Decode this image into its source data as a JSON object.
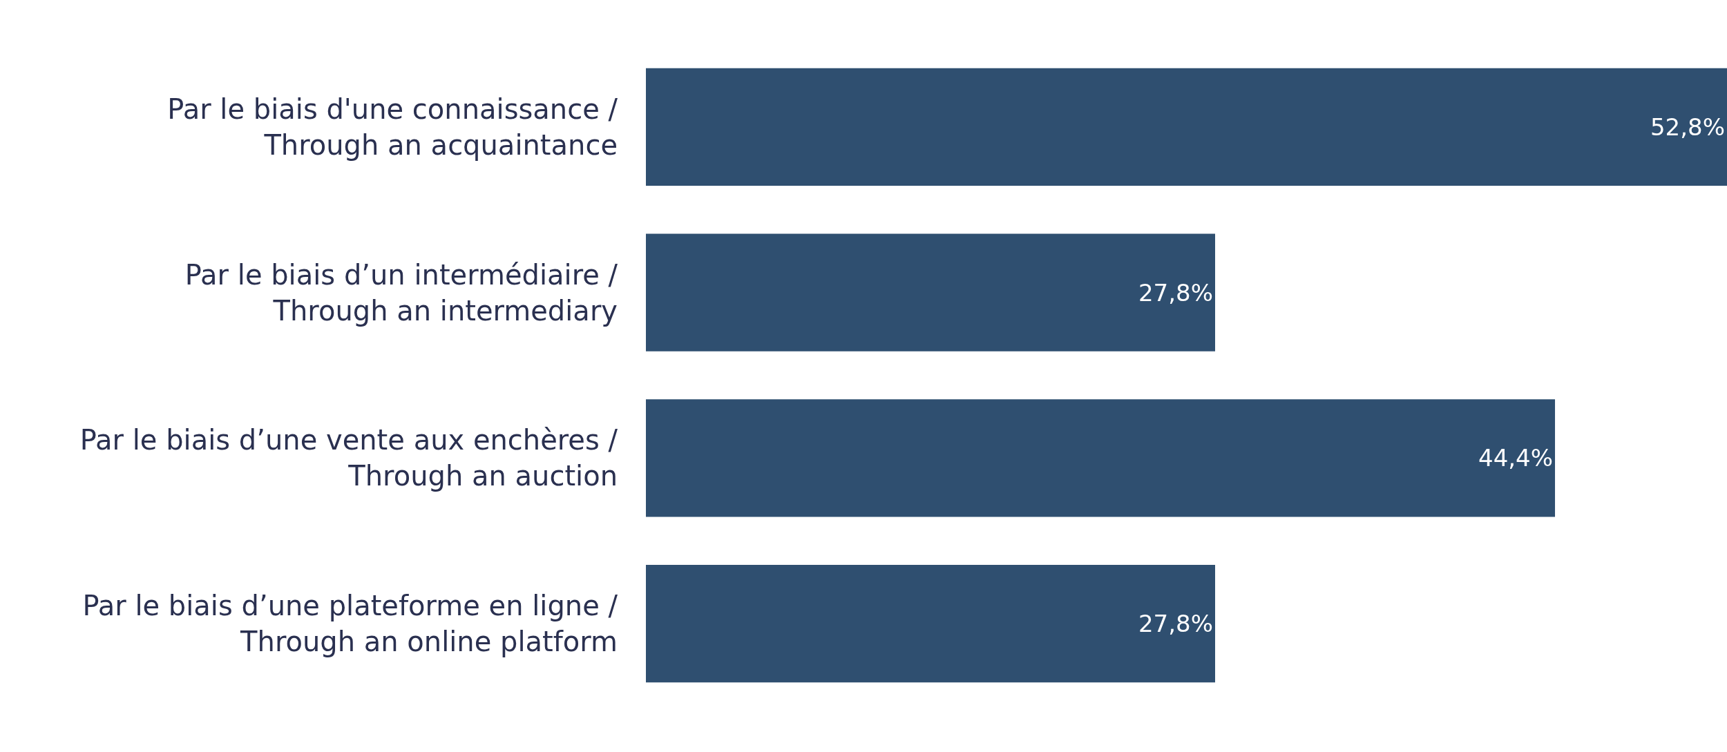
{
  "chart_data": {
    "type": "bar",
    "orientation": "horizontal",
    "categories": [
      "Par le biais d'une connaissance /\nThrough an acquaintance",
      "Par le biais d’un intermédiaire /\nThrough an intermediary",
      "Par le biais d’une vente aux enchères /\nThrough an auction",
      "Par le biais d’une plateforme en ligne /\nThrough an online platform"
    ],
    "values": [
      52.8,
      27.8,
      44.4,
      27.8
    ],
    "value_labels": [
      "52,8%",
      "27,8%",
      "44,4%",
      "27,8%"
    ],
    "color": "#2f4f70"
  }
}
